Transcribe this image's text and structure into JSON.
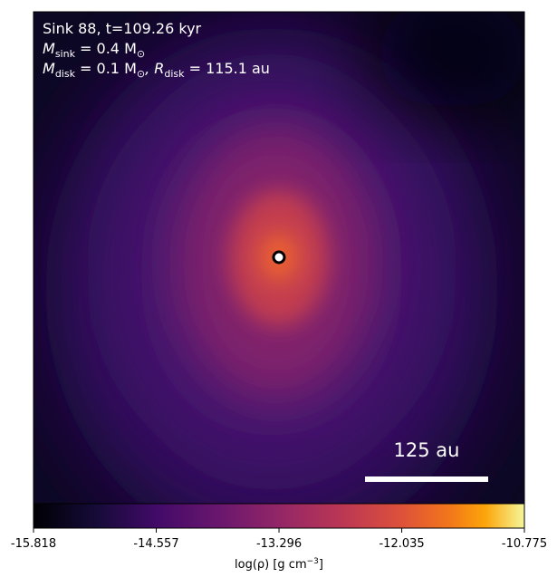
{
  "chart_data": {
    "type": "heatmap",
    "annotation_lines": [
      [
        "Sink 88, t=109.26 kyr"
      ],
      [
        "M",
        "sink",
        " = 0.4 M",
        "⊙"
      ],
      [
        "M",
        "disk",
        " = 0.1 M",
        "⊙",
        ", R",
        "disk",
        " = 115.1 au"
      ]
    ],
    "scale_bar_label": "125 au",
    "colorbar": {
      "label": [
        "log(ρ) [g cm",
        "−3",
        "]"
      ],
      "lim": [
        -15.818,
        -10.775
      ],
      "ticks": [
        -15.818,
        -14.557,
        -13.296,
        -12.035,
        -10.775
      ]
    }
  }
}
